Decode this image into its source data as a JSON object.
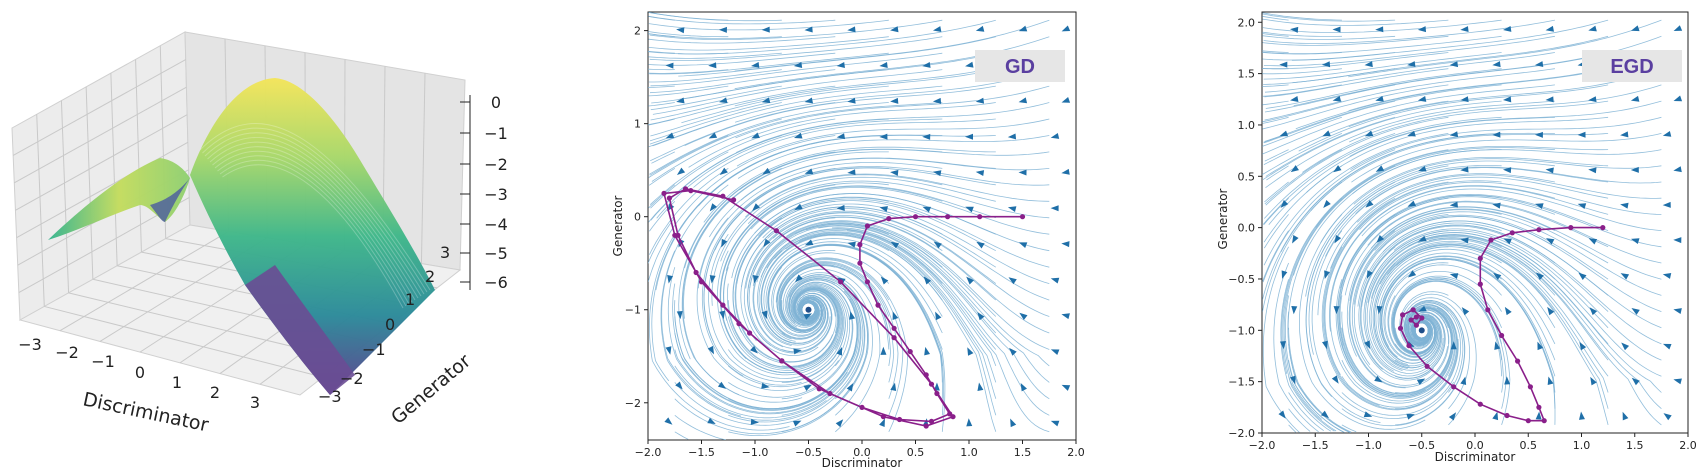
{
  "chart_data": [
    {
      "type": "surface",
      "xlabel": "Discriminator",
      "ylabel": "Generator",
      "x_ticks": [
        "−3",
        "−2",
        "−1",
        "0",
        "1",
        "2",
        "3"
      ],
      "y_ticks": [
        "−3",
        "−2",
        "−1",
        "0",
        "1",
        "2",
        "3"
      ],
      "z_ticks": [
        "0",
        "−1",
        "−2",
        "−3",
        "−4",
        "−5",
        "−6"
      ],
      "colormap": "viridis"
    },
    {
      "type": "streamplot",
      "label": "GD",
      "xlabel": "Discriminator",
      "ylabel": "Generator",
      "xlim": [
        -2.0,
        2.0
      ],
      "ylim": [
        -2.4,
        2.2
      ],
      "x_ticks": [
        "−2.0",
        "−1.5",
        "−1.0",
        "−0.5",
        "0.0",
        "0.5",
        "1.0",
        "1.5",
        "2.0"
      ],
      "y_ticks": [
        "2",
        "1",
        "0",
        "−1",
        "−2"
      ],
      "equilibrium": [
        -0.5,
        -1.0
      ],
      "trajectory": [
        [
          1.5,
          0.0
        ],
        [
          1.1,
          0.0
        ],
        [
          0.8,
          0.0
        ],
        [
          0.5,
          0.0
        ],
        [
          0.25,
          -0.02
        ],
        [
          0.05,
          -0.1
        ],
        [
          -0.02,
          -0.3
        ],
        [
          -0.02,
          -0.5
        ],
        [
          0.05,
          -0.7
        ],
        [
          0.15,
          -0.95
        ],
        [
          0.3,
          -1.2
        ],
        [
          0.45,
          -1.45
        ],
        [
          0.6,
          -1.7
        ],
        [
          0.7,
          -1.9
        ],
        [
          0.82,
          -2.12
        ],
        [
          0.65,
          -2.2
        ],
        [
          0.35,
          -2.18
        ],
        [
          0.0,
          -2.05
        ],
        [
          -0.4,
          -1.85
        ],
        [
          -0.75,
          -1.55
        ],
        [
          -1.05,
          -1.25
        ],
        [
          -1.3,
          -0.95
        ],
        [
          -1.55,
          -0.6
        ],
        [
          -1.72,
          -0.2
        ],
        [
          -1.8,
          0.2
        ],
        [
          -1.65,
          0.3
        ],
        [
          -1.3,
          0.22
        ],
        [
          -0.8,
          -0.15
        ],
        [
          -0.2,
          -0.7
        ],
        [
          0.3,
          -1.3
        ],
        [
          0.65,
          -1.8
        ],
        [
          0.85,
          -2.15
        ],
        [
          0.6,
          -2.25
        ],
        [
          0.2,
          -2.15
        ],
        [
          -0.3,
          -1.9
        ],
        [
          -0.75,
          -1.55
        ],
        [
          -1.15,
          -1.15
        ],
        [
          -1.5,
          -0.7
        ],
        [
          -1.75,
          -0.2
        ],
        [
          -1.85,
          0.25
        ],
        [
          -1.6,
          0.28
        ],
        [
          -1.2,
          0.18
        ]
      ]
    },
    {
      "type": "streamplot",
      "label": "EGD",
      "xlabel": "Discriminator",
      "ylabel": "Generator",
      "xlim": [
        -2.0,
        2.0
      ],
      "ylim": [
        -2.0,
        2.1
      ],
      "x_ticks": [
        "−2.0",
        "−1.5",
        "−1.0",
        "−0.5",
        "0.0",
        "0.5",
        "1.0",
        "1.5",
        "2.0"
      ],
      "y_ticks": [
        "2.0",
        "1.5",
        "1.0",
        "0.5",
        "0.0",
        "−0.5",
        "−1.0",
        "−1.5",
        "−2.0"
      ],
      "equilibrium": [
        -0.5,
        -1.0
      ],
      "trajectory": [
        [
          1.2,
          0.0
        ],
        [
          0.9,
          0.0
        ],
        [
          0.6,
          -0.02
        ],
        [
          0.35,
          -0.05
        ],
        [
          0.15,
          -0.12
        ],
        [
          0.05,
          -0.3
        ],
        [
          0.05,
          -0.55
        ],
        [
          0.12,
          -0.8
        ],
        [
          0.25,
          -1.05
        ],
        [
          0.4,
          -1.3
        ],
        [
          0.52,
          -1.55
        ],
        [
          0.6,
          -1.75
        ],
        [
          0.65,
          -1.88
        ],
        [
          0.5,
          -1.88
        ],
        [
          0.3,
          -1.83
        ],
        [
          0.05,
          -1.72
        ],
        [
          -0.2,
          -1.55
        ],
        [
          -0.45,
          -1.35
        ],
        [
          -0.62,
          -1.15
        ],
        [
          -0.7,
          -0.98
        ],
        [
          -0.68,
          -0.85
        ],
        [
          -0.58,
          -0.8
        ],
        [
          -0.5,
          -0.88
        ],
        [
          -0.55,
          -0.95
        ],
        [
          -0.6,
          -0.9
        ],
        [
          -0.55,
          -0.87
        ]
      ]
    }
  ]
}
